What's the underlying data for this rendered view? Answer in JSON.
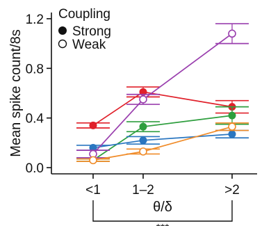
{
  "chart_data": {
    "type": "line",
    "ylabel": "Mean spike count/8s",
    "xlabel": "θ/δ",
    "categories": [
      "<1",
      "1–2",
      ">2"
    ],
    "ylim": [
      -0.05,
      1.25
    ],
    "yticks": [
      0.0,
      0.4,
      0.8,
      1.2
    ],
    "ytick_labels": [
      "0.0",
      "0.4",
      "0.8",
      "1.2"
    ],
    "legend": {
      "title": "Coupling",
      "entries": [
        {
          "label": "Strong",
          "marker": "filled-circle"
        },
        {
          "label": "Weak",
          "marker": "open-circle"
        }
      ],
      "position": "top-left"
    },
    "series": [
      {
        "coupling": "Strong",
        "color": "#e0202a",
        "values": [
          0.34,
          0.61,
          0.49
        ],
        "errors": [
          0.02,
          0.04,
          0.05
        ]
      },
      {
        "coupling": "Strong",
        "color": "#2e9e3e",
        "values": [
          0.06,
          0.33,
          0.42
        ],
        "errors": [
          0.01,
          0.04,
          0.07
        ]
      },
      {
        "coupling": "Strong",
        "color": "#2a76c0",
        "values": [
          0.16,
          0.22,
          0.27
        ],
        "errors": [
          0.02,
          0.03,
          0.03
        ]
      },
      {
        "coupling": "Weak",
        "color": "#9a3fae",
        "values": [
          0.11,
          0.55,
          1.08
        ],
        "errors": [
          0.03,
          0.04,
          0.08
        ]
      },
      {
        "coupling": "Weak",
        "color": "#f08c2a",
        "values": [
          0.06,
          0.13,
          0.33
        ],
        "errors": [
          0.01,
          0.02,
          0.03
        ]
      }
    ],
    "significance": {
      "from": "<1",
      "to": ">2",
      "label": "***"
    }
  }
}
